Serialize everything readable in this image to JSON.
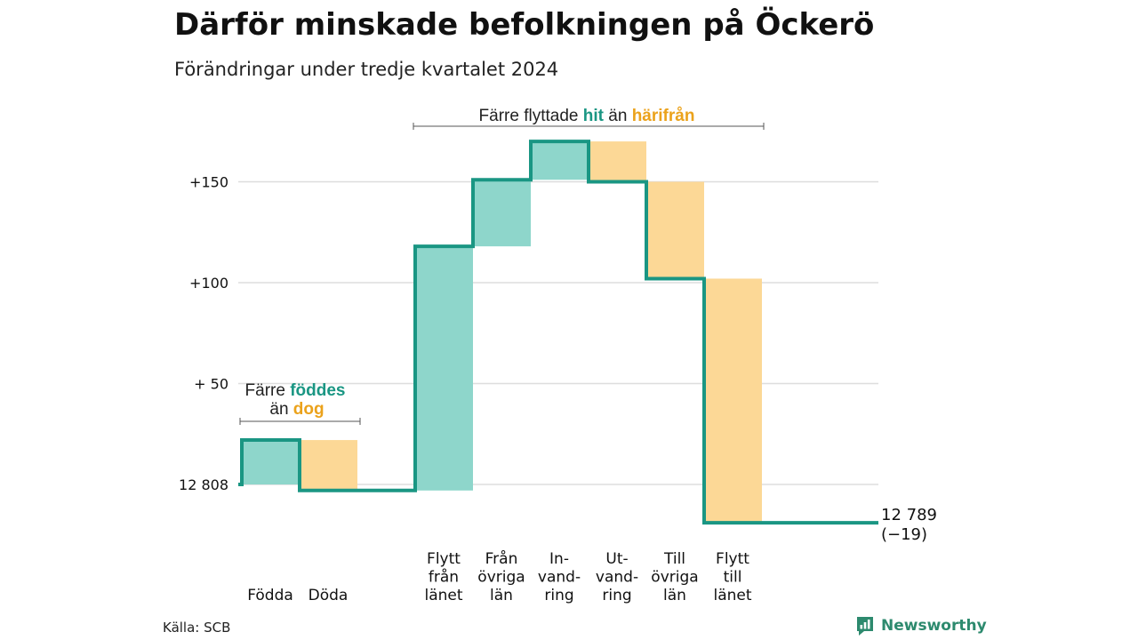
{
  "title": "Därför minskade befolkningen på Öckerö",
  "subtitle": "Förändringar under tredje kvartalet 2024",
  "source": "Källa: SCB",
  "brand": "Newsworthy",
  "colors": {
    "positive": "#8ed6cb",
    "negative": "#fcd896",
    "line": "#1a9683",
    "teal_text": "#1a9683",
    "orange_text": "#eba21b",
    "grid": "#dddddd"
  },
  "annotations": {
    "births": {
      "line1_prefix": "Färre ",
      "line1_highlight": "föddes",
      "line2_prefix": "än ",
      "line2_highlight": "dog"
    },
    "moves": {
      "prefix": "Färre flyttade ",
      "highlight_in": "hit",
      "middle": " än ",
      "highlight_out": "härifrån"
    }
  },
  "chart_data": {
    "type": "waterfall",
    "title": "Därför minskade befolkningen på Öckerö",
    "subtitle": "Förändringar under tredje kvartalet 2024",
    "start": {
      "label": "12 808",
      "value": 0
    },
    "end": {
      "label": "12 789",
      "sublabel": "(−19)",
      "value": -19
    },
    "y_ticks": [
      {
        "value": 150,
        "label": "+150"
      },
      {
        "value": 100,
        "label": "+100"
      },
      {
        "value": 50,
        "label": "+ 50"
      },
      {
        "value": 0,
        "label": "12 808"
      }
    ],
    "ylim": [
      -21,
      170
    ],
    "grid": true,
    "steps": [
      {
        "label_lines": [
          "Födda"
        ],
        "change": 22,
        "kind": "in"
      },
      {
        "label_lines": [
          "Döda"
        ],
        "change": -25,
        "kind": "out"
      },
      {
        "label_lines": [
          "Flytt",
          "från",
          "länet"
        ],
        "change": 121,
        "kind": "in"
      },
      {
        "label_lines": [
          "Från",
          "övriga",
          "län"
        ],
        "change": 33,
        "kind": "in"
      },
      {
        "label_lines": [
          "In-",
          "vand-",
          "ring"
        ],
        "change": 19,
        "kind": "in"
      },
      {
        "label_lines": [
          "Ut-",
          "vand-",
          "ring"
        ],
        "change": -20,
        "kind": "out"
      },
      {
        "label_lines": [
          "Till",
          "övriga",
          "län"
        ],
        "change": -48,
        "kind": "out"
      },
      {
        "label_lines": [
          "Flytt",
          "till",
          "länet"
        ],
        "change": -121,
        "kind": "out"
      }
    ],
    "step_levels": [
      22,
      -3,
      118,
      151,
      170,
      150,
      102,
      -19
    ]
  }
}
